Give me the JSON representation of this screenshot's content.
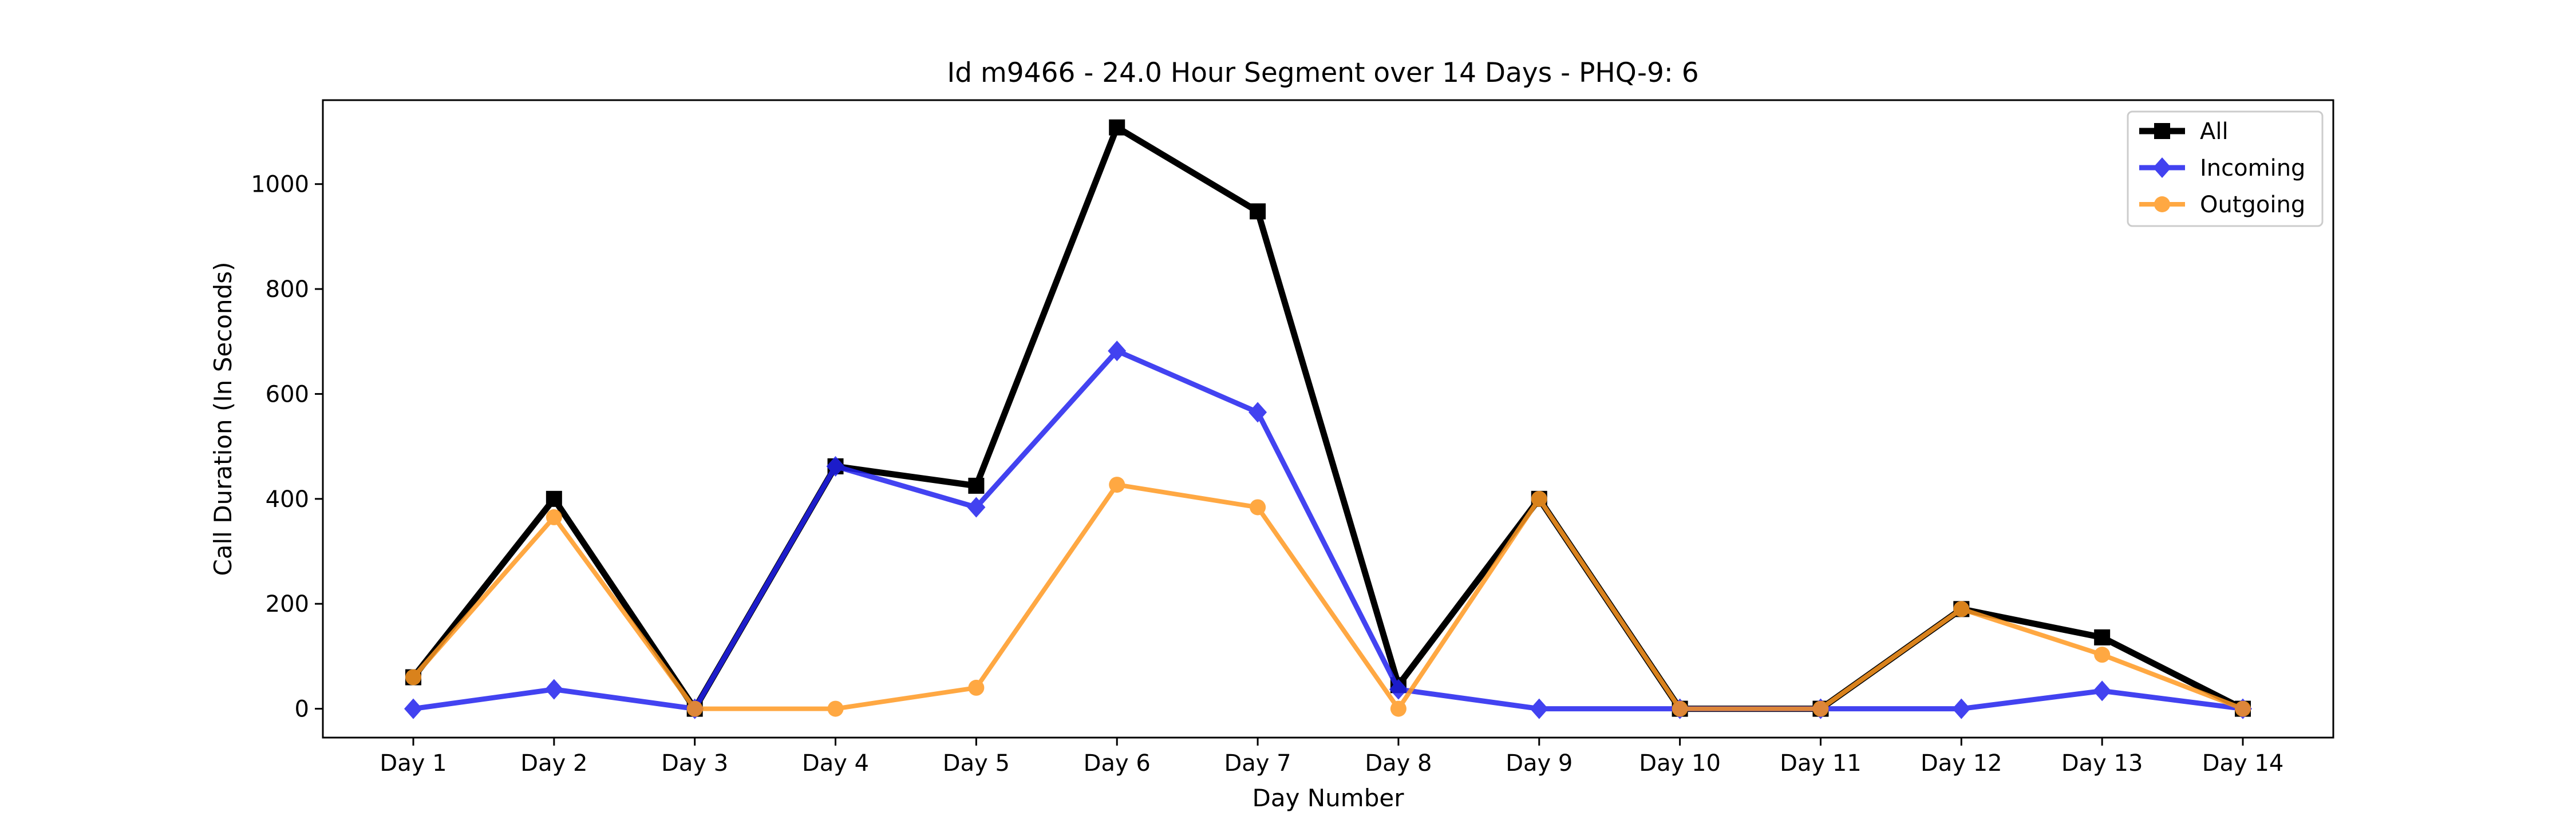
{
  "chart_data": {
    "type": "line",
    "title": "Id m9466 - 24.0 Hour Segment over 14 Days - PHQ-9: 6",
    "xlabel": "Day Number",
    "ylabel": "Call Duration (In Seconds)",
    "categories": [
      "Day 1",
      "Day 2",
      "Day 3",
      "Day 4",
      "Day 5",
      "Day 6",
      "Day 7",
      "Day 8",
      "Day 9",
      "Day 10",
      "Day 11",
      "Day 12",
      "Day 13",
      "Day 14"
    ],
    "ylim": [
      -55,
      1160
    ],
    "yticks": [
      0,
      200,
      400,
      600,
      800,
      1000
    ],
    "grid": false,
    "legend_position": "top-right",
    "series": [
      {
        "name": "All",
        "color": "#000000",
        "marker": "square",
        "values": [
          60,
          400,
          0,
          462,
          425,
          1108,
          948,
          45,
          400,
          0,
          0,
          190,
          136,
          0
        ]
      },
      {
        "name": "Incoming",
        "color": "#2222ee",
        "marker": "diamond",
        "values": [
          0,
          37,
          0,
          462,
          384,
          682,
          565,
          37,
          0,
          0,
          0,
          0,
          34,
          0
        ]
      },
      {
        "name": "Outgoing",
        "color": "#ff9922",
        "marker": "circle",
        "values": [
          60,
          365,
          0,
          0,
          40,
          427,
          384,
          0,
          400,
          0,
          0,
          190,
          103,
          0
        ]
      }
    ]
  }
}
